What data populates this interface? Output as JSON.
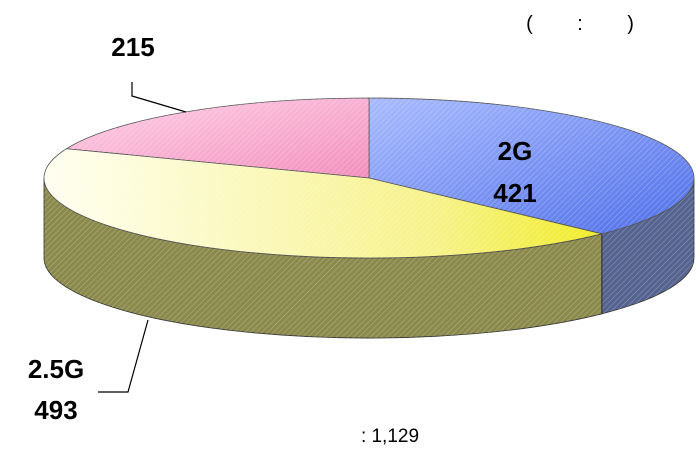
{
  "chart_data": {
    "type": "pie",
    "style": "3d",
    "slices": [
      {
        "label": "2G",
        "value": 421,
        "color": "#7c96f2"
      },
      {
        "label": "",
        "value": 215,
        "color": "#f6a8cc"
      },
      {
        "label": "2.5G",
        "value": 493,
        "color": "#f0ee8a"
      }
    ],
    "unit_note": "(        :        )",
    "total_text": ": 1,129"
  }
}
